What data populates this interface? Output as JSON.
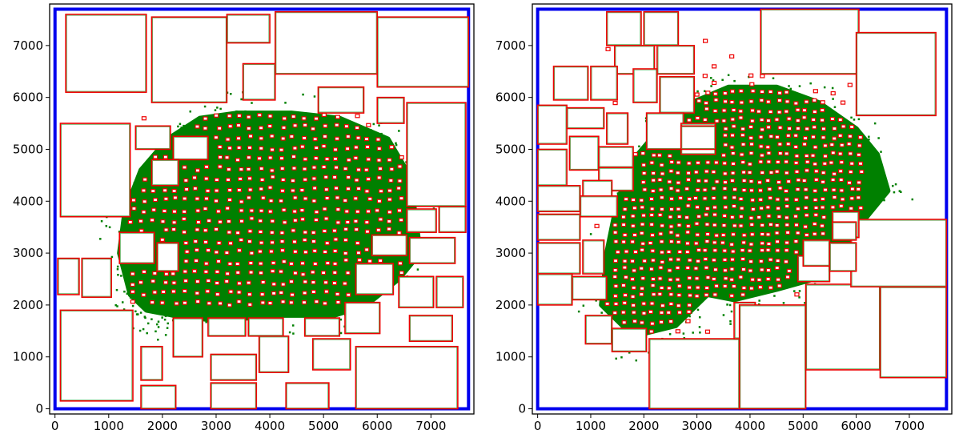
{
  "colors": {
    "boundary": "#0000ee",
    "macro": "#ee0000",
    "cells": "#008000",
    "background": "#ffffff"
  },
  "chart_data": [
    {
      "type": "scatter",
      "title": "",
      "xlabel": "",
      "ylabel": "",
      "xlim": [
        -100,
        7800
      ],
      "ylim": [
        -100,
        7800
      ],
      "xticks": [
        "0",
        "1000",
        "2000",
        "3000",
        "4000",
        "5000",
        "6000",
        "7000"
      ],
      "yticks": [
        "0",
        "1000",
        "2000",
        "3000",
        "4000",
        "5000",
        "6000",
        "7000"
      ],
      "grid": false,
      "legend": "none",
      "die": [
        0,
        0,
        7700,
        7700
      ],
      "cell_region": [
        [
          1400,
          2200
        ],
        [
          1700,
          1900
        ],
        [
          2200,
          1800
        ],
        [
          3000,
          1700
        ],
        [
          4200,
          1800
        ],
        [
          5200,
          1800
        ],
        [
          5800,
          2000
        ],
        [
          6400,
          2500
        ],
        [
          6800,
          3000
        ],
        [
          6700,
          3800
        ],
        [
          6600,
          4500
        ],
        [
          6200,
          5200
        ],
        [
          5300,
          5600
        ],
        [
          4400,
          5700
        ],
        [
          3400,
          5700
        ],
        [
          2700,
          5600
        ],
        [
          2100,
          5200
        ],
        [
          1600,
          4600
        ],
        [
          1300,
          3800
        ],
        [
          1200,
          3000
        ]
      ],
      "macros": [
        [
          200,
          6100,
          1500,
          1500
        ],
        [
          1800,
          5900,
          1400,
          1650
        ],
        [
          3200,
          7050,
          800,
          550
        ],
        [
          4100,
          6450,
          1900,
          1200
        ],
        [
          6000,
          6200,
          1700,
          1350
        ],
        [
          3500,
          5950,
          600,
          700
        ],
        [
          4900,
          5700,
          850,
          500
        ],
        [
          6000,
          5500,
          500,
          500
        ],
        [
          6550,
          3900,
          1100,
          2000
        ],
        [
          100,
          3700,
          1300,
          1800
        ],
        [
          1500,
          5000,
          650,
          450
        ],
        [
          2200,
          4800,
          650,
          450
        ],
        [
          1800,
          4300,
          500,
          500
        ],
        [
          6550,
          3400,
          550,
          450
        ],
        [
          7150,
          3400,
          500,
          500
        ],
        [
          6600,
          2800,
          850,
          500
        ],
        [
          5900,
          2950,
          650,
          400
        ],
        [
          1200,
          2800,
          650,
          600
        ],
        [
          1900,
          2650,
          400,
          550
        ],
        [
          50,
          2200,
          400,
          700
        ],
        [
          500,
          2150,
          550,
          750
        ],
        [
          100,
          150,
          1350,
          1750
        ],
        [
          1600,
          550,
          400,
          650
        ],
        [
          1600,
          0,
          650,
          450
        ],
        [
          2200,
          1000,
          550,
          750
        ],
        [
          2850,
          1400,
          700,
          350
        ],
        [
          3600,
          1400,
          650,
          350
        ],
        [
          4650,
          1400,
          650,
          350
        ],
        [
          5400,
          1450,
          650,
          600
        ],
        [
          5600,
          2200,
          700,
          600
        ],
        [
          6400,
          1950,
          650,
          600
        ],
        [
          7100,
          1950,
          500,
          600
        ],
        [
          6600,
          1300,
          800,
          500
        ],
        [
          2900,
          550,
          850,
          500
        ],
        [
          2900,
          0,
          850,
          500
        ],
        [
          3800,
          700,
          550,
          700
        ],
        [
          4300,
          0,
          800,
          500
        ],
        [
          4800,
          750,
          700,
          600
        ],
        [
          5600,
          0,
          1900,
          1200
        ]
      ],
      "small_macro_grid": {
        "x": [
          1400,
          6600
        ],
        "y": [
          2000,
          5600
        ],
        "step": 200
      }
    },
    {
      "type": "scatter",
      "title": "",
      "xlabel": "",
      "ylabel": "",
      "xlim": [
        -100,
        7800
      ],
      "ylim": [
        -100,
        7800
      ],
      "xticks": [
        "0",
        "1000",
        "2000",
        "3000",
        "4000",
        "5000",
        "6000",
        "7000"
      ],
      "yticks": [
        "0",
        "1000",
        "2000",
        "3000",
        "4000",
        "5000",
        "6000",
        "7000"
      ],
      "grid": false,
      "legend": "none",
      "die": [
        0,
        0,
        7700,
        7700
      ],
      "cell_region": [
        [
          1200,
          2000
        ],
        [
          1800,
          1400
        ],
        [
          2600,
          1600
        ],
        [
          3200,
          2200
        ],
        [
          3700,
          2100
        ],
        [
          4500,
          2300
        ],
        [
          5200,
          2500
        ],
        [
          5800,
          3000
        ],
        [
          6200,
          3700
        ],
        [
          6600,
          4200
        ],
        [
          6400,
          4900
        ],
        [
          6000,
          5400
        ],
        [
          5300,
          5900
        ],
        [
          4500,
          6200
        ],
        [
          3600,
          6200
        ],
        [
          2900,
          5900
        ],
        [
          2300,
          5400
        ],
        [
          1800,
          4800
        ],
        [
          1500,
          4000
        ],
        [
          1300,
          3000
        ]
      ],
      "macros": [
        [
          1300,
          7000,
          650,
          650
        ],
        [
          2000,
          7000,
          650,
          650
        ],
        [
          1450,
          6450,
          750,
          550
        ],
        [
          2250,
          6450,
          700,
          550
        ],
        [
          300,
          5950,
          650,
          650
        ],
        [
          1000,
          5950,
          500,
          650
        ],
        [
          1800,
          5900,
          450,
          650
        ],
        [
          2300,
          5700,
          650,
          700
        ],
        [
          2050,
          5000,
          700,
          700
        ],
        [
          2700,
          4900,
          650,
          600
        ],
        [
          2700,
          5000,
          650,
          450
        ],
        [
          4200,
          6450,
          1850,
          1250
        ],
        [
          6000,
          5650,
          1500,
          1600
        ],
        [
          0,
          5100,
          550,
          750
        ],
        [
          550,
          5400,
          700,
          400
        ],
        [
          1300,
          5100,
          400,
          600
        ],
        [
          600,
          4600,
          550,
          650
        ],
        [
          1150,
          4650,
          650,
          400
        ],
        [
          1150,
          4200,
          650,
          450
        ],
        [
          0,
          4300,
          550,
          700
        ],
        [
          850,
          4000,
          550,
          400
        ],
        [
          0,
          3800,
          800,
          500
        ],
        [
          800,
          3700,
          700,
          400
        ],
        [
          0,
          3250,
          800,
          500
        ],
        [
          0,
          2600,
          800,
          600
        ],
        [
          850,
          2600,
          400,
          650
        ],
        [
          0,
          2000,
          650,
          600
        ],
        [
          650,
          2100,
          650,
          450
        ],
        [
          900,
          1250,
          500,
          550
        ],
        [
          1400,
          1100,
          650,
          450
        ],
        [
          2100,
          0,
          1700,
          1350
        ],
        [
          3700,
          1350,
          400,
          700
        ],
        [
          3800,
          0,
          1250,
          2000
        ],
        [
          5050,
          750,
          1400,
          1650
        ],
        [
          6450,
          600,
          1250,
          1750
        ],
        [
          5900,
          2350,
          1800,
          1300
        ],
        [
          4900,
          2450,
          600,
          500
        ],
        [
          5000,
          2750,
          500,
          500
        ],
        [
          5500,
          2650,
          500,
          550
        ],
        [
          5550,
          3300,
          500,
          500
        ],
        [
          5550,
          3250,
          450,
          350
        ]
      ],
      "small_macro_grid": {
        "x": [
          1100,
          6100
        ],
        "y": [
          1300,
          7200
        ],
        "step": 170
      }
    }
  ]
}
